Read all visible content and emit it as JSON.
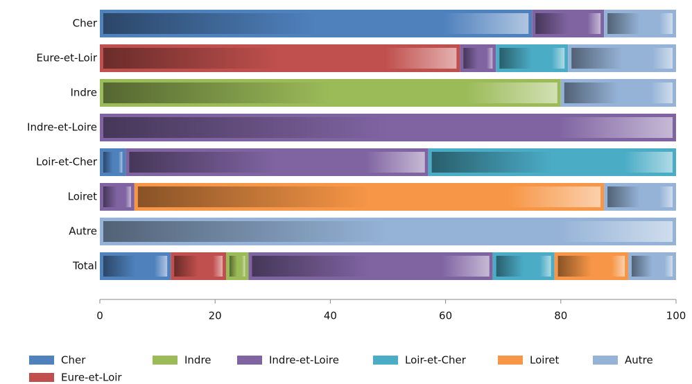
{
  "chart_data": {
    "type": "stacked-bar-horizontal",
    "categories": [
      "Cher",
      "Eure-et-Loir",
      "Indre",
      "Indre-et-Loire",
      "Loir-et-Cher",
      "Loiret",
      "Autre",
      "Total"
    ],
    "series": [
      {
        "name": "Cher",
        "color": "#4f81bd",
        "values": [
          75,
          0,
          0,
          0,
          4.5,
          0,
          0,
          12.3
        ]
      },
      {
        "name": "Eure-et-Loir",
        "color": "#c0504d",
        "values": [
          0,
          62.5,
          0,
          0,
          0,
          0,
          0,
          9.6
        ]
      },
      {
        "name": "Indre",
        "color": "#9bbb59",
        "values": [
          0,
          0,
          80,
          0,
          0,
          0,
          0,
          3.9
        ]
      },
      {
        "name": "Indre-et-Loire",
        "color": "#8064a2",
        "values": [
          12.5,
          6.25,
          0,
          100,
          52.5,
          6,
          0,
          42.4
        ]
      },
      {
        "name": "Loir-et-Cher",
        "color": "#4bacc6",
        "values": [
          0,
          12.5,
          0,
          0,
          43,
          0,
          0,
          10.7
        ]
      },
      {
        "name": "Loiret",
        "color": "#f79646",
        "values": [
          0,
          0,
          0,
          0,
          0,
          81.5,
          0,
          12.8
        ]
      },
      {
        "name": "Autre",
        "color": "#95b3d7",
        "values": [
          12.5,
          18.75,
          20,
          0,
          0,
          12.5,
          100,
          8.3
        ]
      }
    ],
    "xlim": [
      0,
      100
    ],
    "xticks": [
      0,
      20,
      40,
      60,
      80,
      100
    ]
  }
}
